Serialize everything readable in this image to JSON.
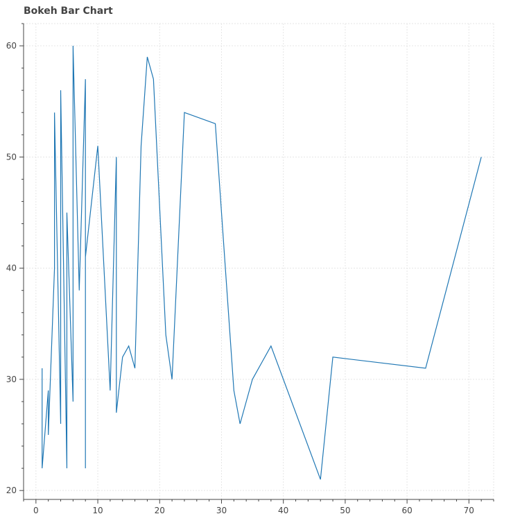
{
  "chart_data": {
    "type": "line",
    "title": "Bokeh Bar Chart",
    "xlabel": "",
    "ylabel": "",
    "xlim": [
      -2,
      74
    ],
    "ylim": [
      19.2,
      62
    ],
    "x_ticks": [
      0,
      10,
      20,
      30,
      40,
      50,
      60,
      70
    ],
    "y_ticks": [
      20,
      30,
      40,
      50,
      60
    ],
    "grid": true,
    "legend": "none",
    "colors": {
      "line": "#1f77b4",
      "grid": "#e5e5e5",
      "axis": "#444444",
      "tick_text": "#444444"
    },
    "series": [
      {
        "x": [
          1,
          1,
          2,
          2,
          3,
          3,
          4,
          4,
          5,
          5,
          6,
          6,
          7,
          8,
          8,
          8,
          10,
          12,
          13,
          13,
          14,
          15,
          16,
          17,
          18,
          19,
          21,
          22,
          24,
          29,
          32,
          33,
          35,
          38,
          46,
          48,
          63,
          72
        ],
        "y": [
          31,
          22,
          29,
          25,
          40,
          54,
          26,
          56,
          22,
          45,
          28,
          60,
          38,
          57,
          22,
          41,
          51,
          29,
          50,
          27,
          32,
          33,
          31,
          51,
          59,
          57,
          34,
          30,
          54,
          53,
          29,
          26,
          30,
          33,
          21,
          32,
          31,
          50
        ]
      }
    ]
  }
}
